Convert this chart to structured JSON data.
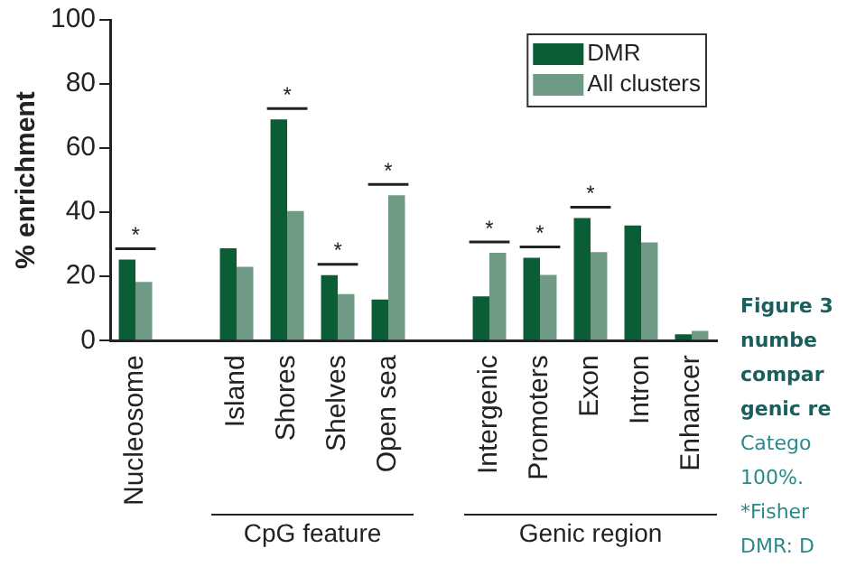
{
  "chart_data": {
    "type": "bar",
    "ylabel": "% enrichment",
    "categories": [
      "Nucleosome",
      null,
      "Island",
      "Shores",
      "Shelves",
      "Open sea",
      null,
      "Intergenic",
      "Promoters",
      "Exon",
      "Intron",
      "Enhancer"
    ],
    "series": [
      {
        "name": "DMR",
        "color": "#0b5d36",
        "values": [
          25.3,
          null,
          28.8,
          69,
          20.4,
          12.8,
          null,
          13.8,
          25.8,
          38.2,
          35.9,
          2
        ]
      },
      {
        "name": "All clusters",
        "color": "#6f9a86",
        "values": [
          18.3,
          null,
          23,
          40.4,
          14.5,
          45.3,
          null,
          27.4,
          20.5,
          27.6,
          30.6,
          3
        ]
      }
    ],
    "ylim": [
      0,
      100
    ],
    "yticks": [
      0,
      20,
      40,
      60,
      80,
      100
    ],
    "grid": false,
    "legend": "top right",
    "annotations": [
      "CpG feature",
      "Genic region",
      "Figure 3",
      "numbe",
      "compar",
      "genic re",
      "Catego",
      "100%.",
      "*Fisher",
      "DMR: D",
      "*",
      "*",
      "*",
      "*",
      "*",
      "*",
      "*"
    ]
  }
}
